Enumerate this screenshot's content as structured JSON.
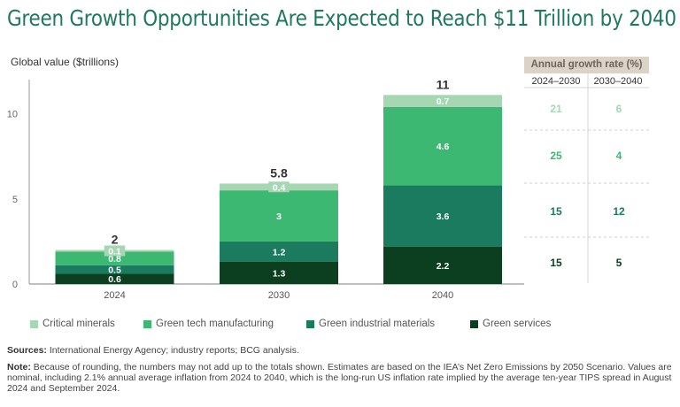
{
  "title": "Green Growth Opportunities Are Expected to Reach $11 Trillion by 2040",
  "chart_data": {
    "type": "bar",
    "stacked": true,
    "title": "Green Growth Opportunities Are Expected to Reach $11 Trillion by 2040",
    "ylabel": "Global value ($trillions)",
    "xlabel": "",
    "categories": [
      "2024",
      "2030",
      "2040"
    ],
    "ylim": [
      0,
      12
    ],
    "yticks": [
      0,
      5,
      10
    ],
    "grid": false,
    "legend_position": "bottom",
    "series": [
      {
        "name": "Green services",
        "color": "#0b3f20",
        "values": [
          0.6,
          1.3,
          2.2
        ]
      },
      {
        "name": "Green industrial materials",
        "color": "#1b7b5e",
        "values": [
          0.5,
          1.2,
          3.6
        ]
      },
      {
        "name": "Green tech manufacturing",
        "color": "#3cb872",
        "values": [
          0.8,
          3.0,
          4.6
        ]
      },
      {
        "name": "Critical minerals",
        "color": "#a4d7b2",
        "values": [
          0.1,
          0.4,
          0.7
        ]
      }
    ],
    "totals": [
      "2",
      "5.8",
      "11"
    ],
    "value_labels": [
      [
        "0.6",
        "1.3",
        "2.2"
      ],
      [
        "0.5",
        "1.2",
        "3.6"
      ],
      [
        "0.8",
        "3",
        "4.6"
      ],
      [
        "0.1",
        "0.4",
        "0.7"
      ]
    ]
  },
  "growth_table": {
    "header": "Annual growth rate (%)",
    "columns": [
      "2024–2030",
      "2030–2040"
    ],
    "rows": [
      {
        "series": "Critical minerals",
        "color": "#a4d7b2",
        "values": [
          "21",
          "6"
        ]
      },
      {
        "series": "Green tech manufacturing",
        "color": "#3cb872",
        "values": [
          "25",
          "4"
        ]
      },
      {
        "series": "Green industrial materials",
        "color": "#1b7b5e",
        "values": [
          "15",
          "12"
        ]
      },
      {
        "series": "Green services",
        "color": "#0b3f20",
        "values": [
          "15",
          "5"
        ]
      }
    ]
  },
  "legend": [
    {
      "label": "Critical minerals",
      "color": "#a4d7b2"
    },
    {
      "label": "Green tech manufacturing",
      "color": "#3cb872"
    },
    {
      "label": "Green industrial materials",
      "color": "#1b7b5e"
    },
    {
      "label": "Green services",
      "color": "#0b3f20"
    }
  ],
  "footer": {
    "sources_label": "Sources:",
    "sources_text": " International Energy Agency; industry reports; BCG analysis.",
    "note_label": "Note:",
    "note_text": " Because of rounding, the numbers may not add up to the totals shown. Estimates are based on the IEA’s Net Zero Emissions by 2050 Scenario. Values are nominal, including 2.1% annual average inflation from 2024 to 2040, which is the long-run US inflation rate implied by the average ten-year TIPS spread in August 2024 and September 2024."
  }
}
